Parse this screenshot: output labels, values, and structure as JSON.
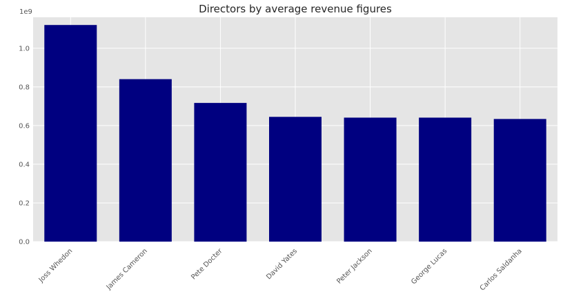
{
  "chart_data": {
    "type": "bar",
    "title": "Directors by average revenue figures",
    "xlabel": "",
    "ylabel": "",
    "categories": [
      "Joss Whedon",
      "James Cameron",
      "Pete Docter",
      "David Yates",
      "Peter Jackson",
      "George Lucas",
      "Carlos Saldanha"
    ],
    "values": [
      1120000000,
      840000000,
      717000000,
      645000000,
      641000000,
      641000000,
      634000000
    ],
    "ylim": [
      0,
      1160000000
    ],
    "yticks": [
      0,
      200000000,
      400000000,
      600000000,
      800000000,
      1000000000
    ],
    "ytick_labels": [
      "0.0",
      "0.2",
      "0.4",
      "0.6",
      "0.8",
      "1.0"
    ],
    "y_offset_label": "1e9",
    "grid": true,
    "legend": "none",
    "bar_color": "#000080",
    "background_color": "#E5E5E5",
    "grid_color": "#FFFFFF"
  }
}
